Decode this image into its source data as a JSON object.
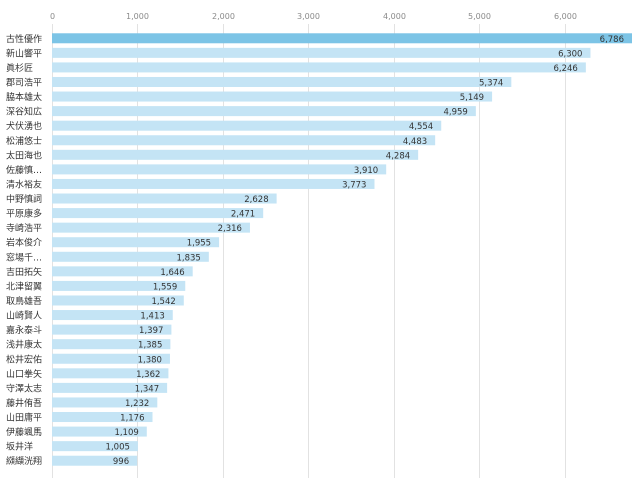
{
  "chart_data": {
    "type": "bar",
    "orientation": "horizontal",
    "title": "",
    "xlabel": "",
    "ylabel": "",
    "xlim": [
      0,
      6786
    ],
    "ticks": [
      0,
      1000,
      2000,
      3000,
      4000,
      5000,
      6000
    ],
    "tick_labels": [
      "0",
      "1,000",
      "2,000",
      "3,000",
      "4,000",
      "5,000",
      "6,000"
    ],
    "grid": true,
    "colors": {
      "bar": "#c4e4f5",
      "highlight": "#7cc4e6",
      "grid": "#e2e2e2"
    },
    "highlight_index": 0,
    "categories": [
      "古性優作",
      "新山響平",
      "眞杉匠",
      "郡司浩平",
      "脇本雄太",
      "深谷知広",
      "犬伏湧也",
      "松浦悠士",
      "太田海也",
      "佐藤慎…",
      "清水裕友",
      "中野慎詞",
      "平原康多",
      "寺崎浩平",
      "岩本俊介",
      "窓場千…",
      "吉田拓矢",
      "北津留翼",
      "取鳥雄吾",
      "山崎賢人",
      "嘉永泰斗",
      "浅井康太",
      "松井宏佑",
      "山口拳矢",
      "守澤太志",
      "藤井侑吾",
      "山田庸平",
      "伊藤颯馬",
      "坂井洋",
      "纐纈洸翔"
    ],
    "values": [
      6786,
      6300,
      6246,
      5374,
      5149,
      4959,
      4554,
      4483,
      4284,
      3910,
      3773,
      2628,
      2471,
      2316,
      1955,
      1835,
      1646,
      1559,
      1542,
      1413,
      1397,
      1385,
      1380,
      1362,
      1347,
      1232,
      1176,
      1109,
      1005,
      996
    ],
    "value_labels": [
      "6,786",
      "6,300",
      "6,246",
      "5,374",
      "5,149",
      "4,959",
      "4,554",
      "4,483",
      "4,284",
      "3,910",
      "3,773",
      "2,628",
      "2,471",
      "2,316",
      "1,955",
      "1,835",
      "1,646",
      "1,559",
      "1,542",
      "1,413",
      "1,397",
      "1,385",
      "1,380",
      "1,362",
      "1,347",
      "1,232",
      "1,176",
      "1,109",
      "1,005",
      "996"
    ]
  }
}
